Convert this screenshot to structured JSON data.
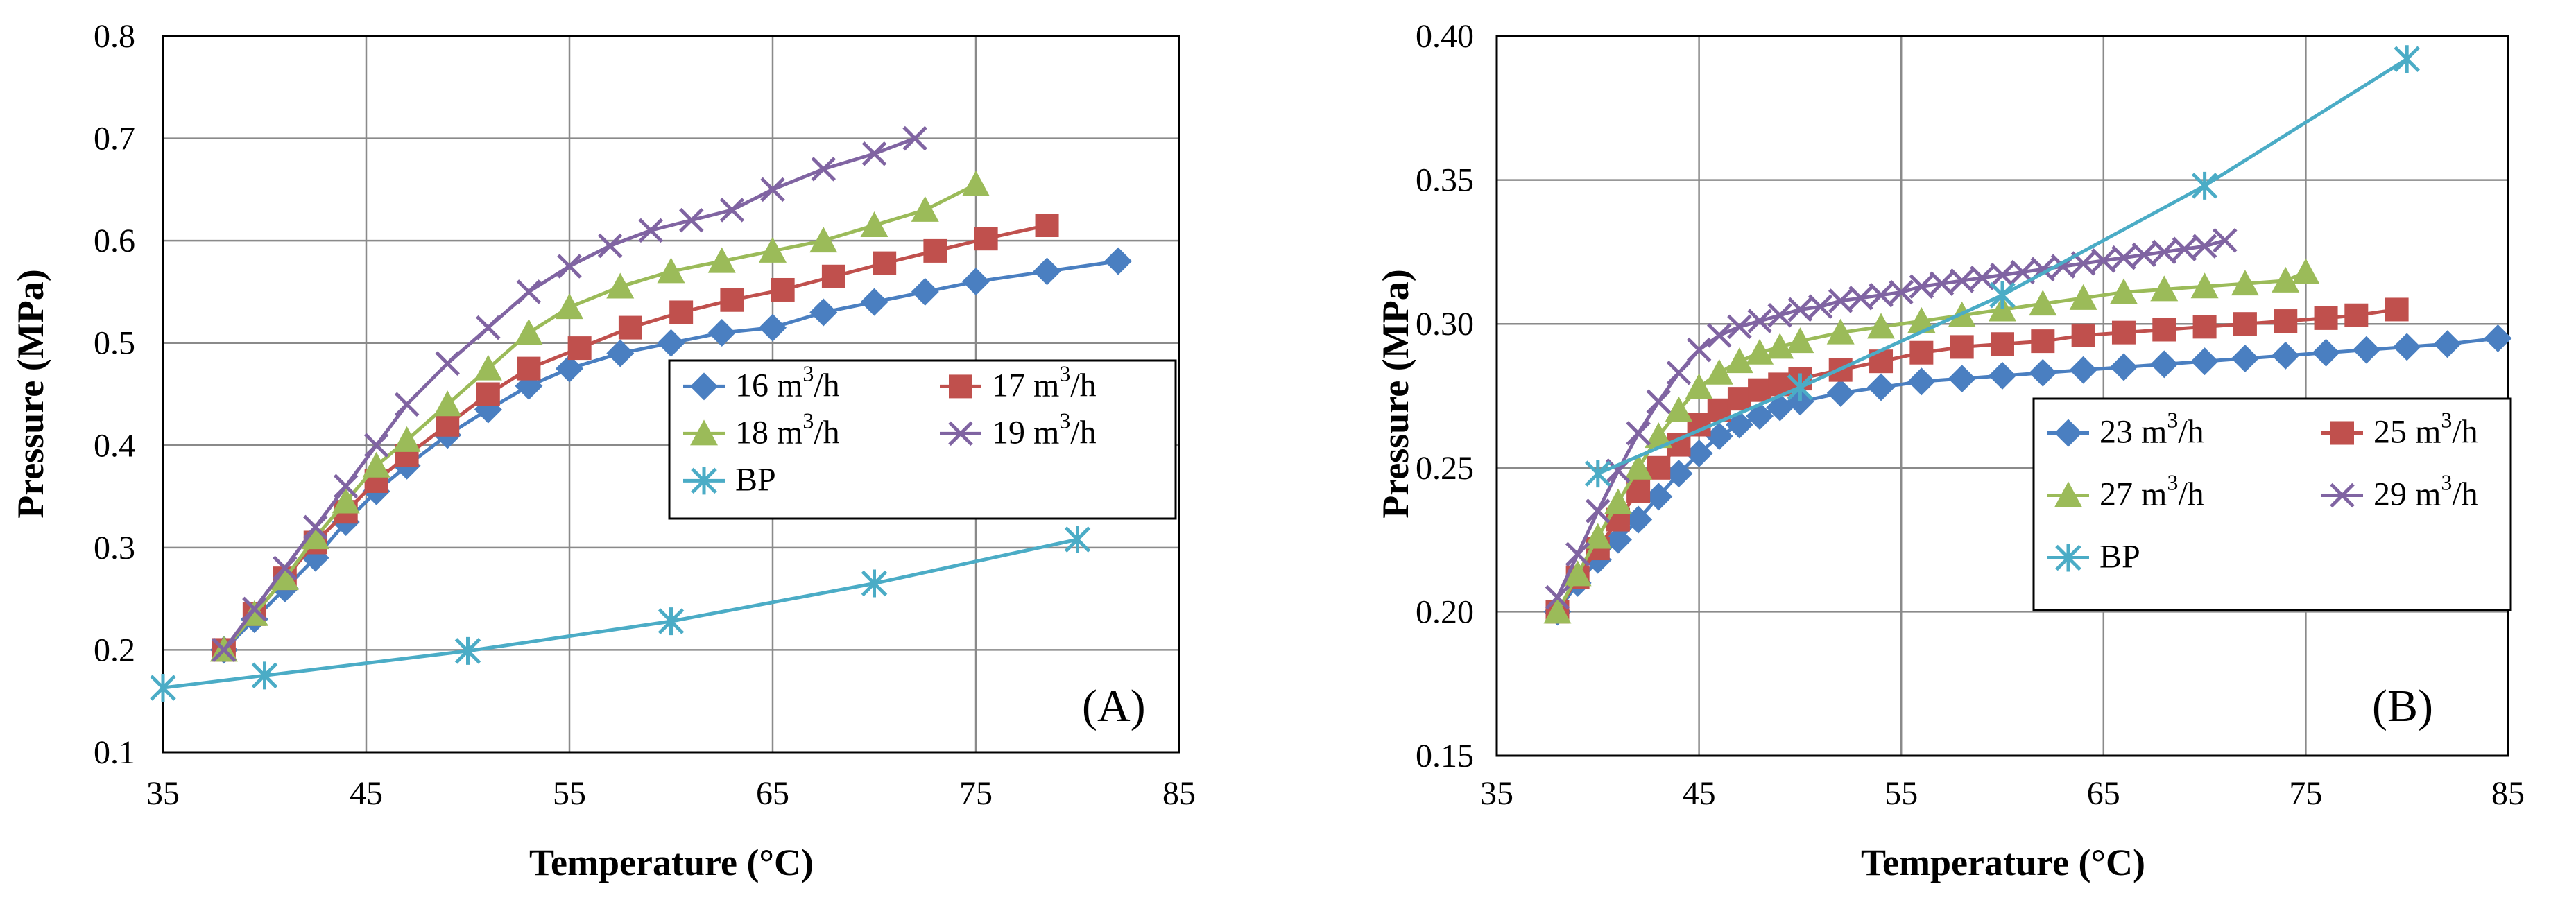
{
  "chart_data": [
    {
      "type": "line",
      "panel_label": "(A)",
      "xlabel": "Temperature (°C)",
      "ylabel": "Pressure (MPa)",
      "xlim": [
        35,
        85
      ],
      "ylim": [
        0.1,
        0.8
      ],
      "x_ticks": [
        35,
        45,
        55,
        65,
        75,
        85
      ],
      "x_tick_labels": [
        "35",
        "45",
        "55",
        "65",
        "75",
        "85"
      ],
      "y_ticks": [
        0.1,
        0.2,
        0.3,
        0.4,
        0.5,
        0.6,
        0.7,
        0.8
      ],
      "y_tick_labels": [
        "0.1",
        "0.2",
        "0.3",
        "0.4",
        "0.5",
        "0.6",
        "0.7",
        "0.8"
      ],
      "grid": true,
      "legend_position": "center-right",
      "series": [
        {
          "name": "16 m³/h",
          "label_main": "16 m",
          "label_sup": "3",
          "label_tail": "/h",
          "color": "#4a7fc1",
          "marker": "diamond",
          "x": [
            38,
            39.5,
            41,
            42.5,
            44,
            45.5,
            47,
            49,
            51,
            53,
            55,
            57.5,
            60,
            62.5,
            65,
            67.5,
            70,
            72.5,
            75,
            78.5,
            82
          ],
          "y": [
            0.2,
            0.23,
            0.26,
            0.29,
            0.325,
            0.355,
            0.38,
            0.41,
            0.435,
            0.458,
            0.475,
            0.49,
            0.5,
            0.51,
            0.515,
            0.53,
            0.54,
            0.55,
            0.56,
            0.57,
            0.58
          ]
        },
        {
          "name": "17 m³/h",
          "label_main": "17 m",
          "label_sup": "3",
          "label_tail": "/h",
          "color": "#c0504d",
          "marker": "square",
          "x": [
            38,
            39.5,
            41,
            42.5,
            44,
            45.5,
            47,
            49,
            51,
            53,
            55.5,
            58,
            60.5,
            63,
            65.5,
            68,
            70.5,
            73,
            75.5,
            78.5
          ],
          "y": [
            0.2,
            0.235,
            0.27,
            0.305,
            0.335,
            0.365,
            0.39,
            0.42,
            0.45,
            0.475,
            0.495,
            0.515,
            0.53,
            0.542,
            0.552,
            0.565,
            0.578,
            0.59,
            0.602,
            0.615
          ]
        },
        {
          "name": "18 m³/h",
          "label_main": "18 m",
          "label_sup": "3",
          "label_tail": "/h",
          "color": "#9bbb59",
          "marker": "triangle",
          "x": [
            38,
            39.5,
            41,
            42.5,
            44,
            45.5,
            47,
            49,
            51,
            53,
            55,
            57.5,
            60,
            62.5,
            65,
            67.5,
            70,
            72.5,
            75
          ],
          "y": [
            0.2,
            0.235,
            0.27,
            0.31,
            0.345,
            0.38,
            0.405,
            0.44,
            0.475,
            0.51,
            0.535,
            0.555,
            0.57,
            0.58,
            0.59,
            0.6,
            0.615,
            0.63,
            0.655
          ]
        },
        {
          "name": "19 m³/h",
          "label_main": "19 m",
          "label_sup": "3",
          "label_tail": "/h",
          "color": "#8064a2",
          "marker": "x",
          "x": [
            38,
            39.5,
            41,
            42.5,
            44,
            45.5,
            47,
            49,
            51,
            53,
            55,
            57,
            59,
            61,
            63,
            65,
            67.5,
            70,
            72
          ],
          "y": [
            0.2,
            0.24,
            0.28,
            0.32,
            0.36,
            0.4,
            0.44,
            0.48,
            0.515,
            0.55,
            0.575,
            0.595,
            0.61,
            0.62,
            0.63,
            0.65,
            0.67,
            0.685,
            0.7
          ]
        },
        {
          "name": "BP",
          "label_main": "BP",
          "label_sup": "",
          "label_tail": "",
          "color": "#4bacc6",
          "marker": "asterisk",
          "x": [
            35,
            40,
            50,
            60,
            70,
            80
          ],
          "y": [
            0.163,
            0.175,
            0.199,
            0.228,
            0.265,
            0.308
          ]
        }
      ]
    },
    {
      "type": "line",
      "panel_label": "(B)",
      "xlabel": "Temperature (°C)",
      "ylabel": "Pressure (MPa)",
      "xlim": [
        35,
        85
      ],
      "ylim": [
        0.15,
        0.4
      ],
      "x_ticks": [
        35,
        45,
        55,
        65,
        75,
        85
      ],
      "x_tick_labels": [
        "35",
        "45",
        "55",
        "65",
        "75",
        "85"
      ],
      "y_ticks": [
        0.15,
        0.2,
        0.25,
        0.3,
        0.35,
        0.4
      ],
      "y_tick_labels": [
        "0.15",
        "0.20",
        "0.25",
        "0.30",
        "0.35",
        "0.40"
      ],
      "grid": true,
      "legend_position": "center-right",
      "series": [
        {
          "name": "23 m³/h",
          "label_main": "23 m",
          "label_sup": "3",
          "label_tail": "/h",
          "color": "#4a7fc1",
          "marker": "diamond",
          "x": [
            38,
            39,
            40,
            41,
            42,
            43,
            44,
            45,
            46,
            47,
            48,
            49,
            50,
            52,
            54,
            56,
            58,
            60,
            62,
            64,
            66,
            68,
            70,
            72,
            74,
            76,
            78,
            80,
            82,
            84.5
          ],
          "y": [
            0.2,
            0.21,
            0.218,
            0.225,
            0.232,
            0.24,
            0.248,
            0.255,
            0.261,
            0.265,
            0.268,
            0.271,
            0.273,
            0.276,
            0.278,
            0.28,
            0.281,
            0.282,
            0.283,
            0.284,
            0.285,
            0.286,
            0.287,
            0.288,
            0.289,
            0.29,
            0.291,
            0.292,
            0.293,
            0.295
          ]
        },
        {
          "name": "25 m³/h",
          "label_main": "25 m",
          "label_sup": "3",
          "label_tail": "/h",
          "color": "#c0504d",
          "marker": "square",
          "x": [
            38,
            39,
            40,
            41,
            42,
            43,
            44,
            45,
            46,
            47,
            48,
            49,
            50,
            52,
            54,
            56,
            58,
            60,
            62,
            64,
            66,
            68,
            70,
            72,
            74,
            76,
            77.5,
            79.5
          ],
          "y": [
            0.2,
            0.212,
            0.222,
            0.232,
            0.242,
            0.25,
            0.258,
            0.265,
            0.27,
            0.274,
            0.277,
            0.279,
            0.281,
            0.284,
            0.287,
            0.29,
            0.292,
            0.293,
            0.294,
            0.296,
            0.297,
            0.298,
            0.299,
            0.3,
            0.301,
            0.302,
            0.303,
            0.305
          ]
        },
        {
          "name": "27 m³/h",
          "label_main": "27 m",
          "label_sup": "3",
          "label_tail": "/h",
          "color": "#9bbb59",
          "marker": "triangle",
          "x": [
            38,
            39,
            40,
            41,
            42,
            43,
            44,
            45,
            46,
            47,
            48,
            49,
            50,
            52,
            54,
            56,
            58,
            60,
            62,
            64,
            66,
            68,
            70,
            72,
            74,
            75
          ],
          "y": [
            0.2,
            0.213,
            0.226,
            0.238,
            0.25,
            0.261,
            0.27,
            0.278,
            0.283,
            0.287,
            0.29,
            0.292,
            0.294,
            0.297,
            0.299,
            0.301,
            0.303,
            0.305,
            0.307,
            0.309,
            0.311,
            0.312,
            0.313,
            0.314,
            0.315,
            0.318
          ]
        },
        {
          "name": "29 m³/h",
          "label_main": "29 m",
          "label_sup": "3",
          "label_tail": "/h",
          "color": "#8064a2",
          "marker": "x",
          "x": [
            38,
            39,
            40,
            41,
            42,
            43,
            44,
            45,
            46,
            47,
            48,
            49,
            50,
            51,
            52,
            53,
            54,
            55,
            56,
            57,
            58,
            59,
            60,
            61,
            62,
            63,
            64,
            65,
            66,
            67,
            68,
            69,
            70,
            71
          ],
          "y": [
            0.205,
            0.22,
            0.235,
            0.249,
            0.262,
            0.273,
            0.283,
            0.291,
            0.296,
            0.299,
            0.301,
            0.303,
            0.305,
            0.306,
            0.308,
            0.309,
            0.31,
            0.311,
            0.313,
            0.314,
            0.315,
            0.316,
            0.317,
            0.318,
            0.319,
            0.32,
            0.321,
            0.322,
            0.323,
            0.324,
            0.325,
            0.326,
            0.327,
            0.329
          ]
        },
        {
          "name": "BP",
          "label_main": "BP",
          "label_sup": "",
          "label_tail": "",
          "color": "#4bacc6",
          "marker": "asterisk",
          "x": [
            40,
            50,
            60,
            70,
            80
          ],
          "y": [
            0.248,
            0.278,
            0.31,
            0.348,
            0.392
          ]
        }
      ]
    }
  ]
}
